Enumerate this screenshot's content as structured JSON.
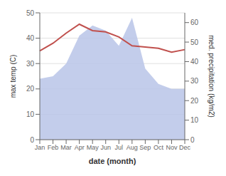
{
  "chart_data": {
    "type": "line",
    "categories": [
      "Jan",
      "Feb",
      "Mar",
      "Apr",
      "May",
      "Jun",
      "Jul",
      "Aug",
      "Sep",
      "Oct",
      "Nov",
      "Dec"
    ],
    "series": [
      {
        "type": "area",
        "color": "#b8c4e8",
        "values": [
          24,
          25,
          30,
          41,
          45,
          43,
          37,
          48,
          28,
          22,
          20,
          20
        ]
      },
      {
        "type": "line",
        "color": "#c0504d",
        "values": [
          35,
          38,
          42,
          45.5,
          43,
          42.5,
          40.5,
          37,
          36.5,
          36,
          34.5,
          35.5
        ]
      }
    ],
    "xlabel": "date (month)",
    "ylabel": "max temp (C)",
    "y2label": "med. precipitation (kg/m2)",
    "ylim": [
      0,
      50
    ],
    "yticks": [
      0,
      10,
      20,
      30,
      40,
      50
    ],
    "y2lim": [
      0,
      65
    ],
    "y2ticks": [
      0,
      10,
      20,
      30,
      40,
      50,
      60
    ],
    "grid": true
  }
}
